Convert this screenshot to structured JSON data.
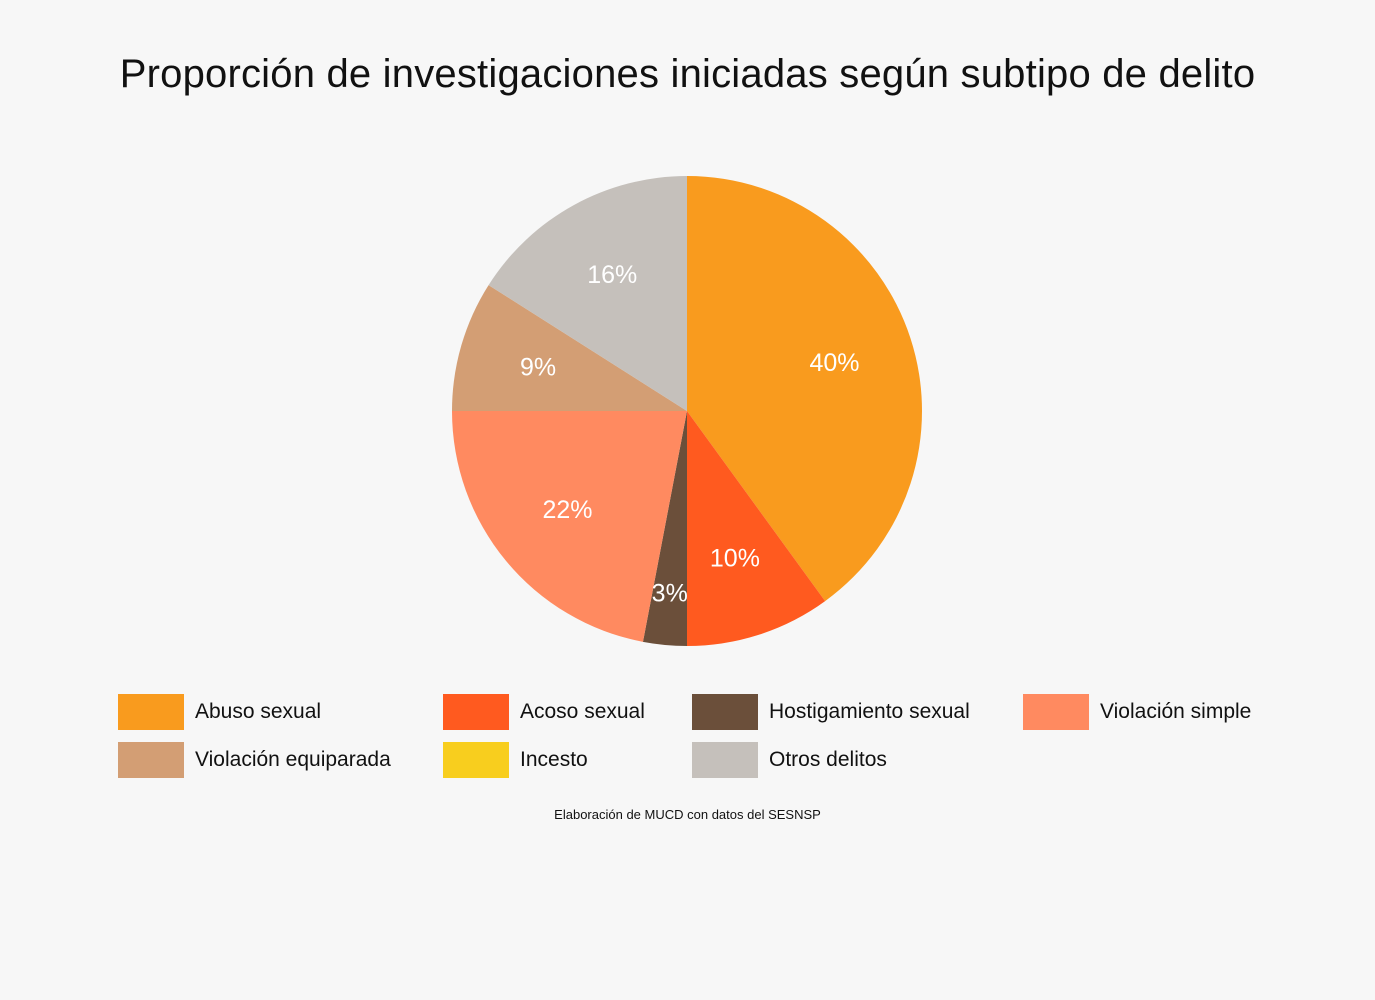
{
  "chart_data": {
    "type": "pie",
    "title": "Proporción de investigaciones iniciadas según subtipo de delito",
    "slices": [
      {
        "name": "Abuso sexual",
        "value": 40,
        "label": "40%",
        "color": "#f99b1e"
      },
      {
        "name": "Acoso sexual",
        "value": 10,
        "label": "10%",
        "color": "#ff5a1f"
      },
      {
        "name": "Hostigamiento sexual",
        "value": 3,
        "label": "3%",
        "color": "#6b4f3a"
      },
      {
        "name": "Violación simple",
        "value": 22,
        "label": "22%",
        "color": "#ff8a60"
      },
      {
        "name": "Violación equiparada",
        "value": 9,
        "label": "9%",
        "color": "#d39e74"
      },
      {
        "name": "Incesto",
        "value": 0,
        "label": "",
        "color": "#f8ce1e"
      },
      {
        "name": "Otros delitos",
        "value": 16,
        "label": "16%",
        "color": "#c5c0bb"
      }
    ],
    "legend_position": "bottom",
    "start_angle": "top, clockwise",
    "label_color": "#ffffff"
  },
  "footer": {
    "source": "Elaboración de MUCD con datos del SESNSP"
  }
}
